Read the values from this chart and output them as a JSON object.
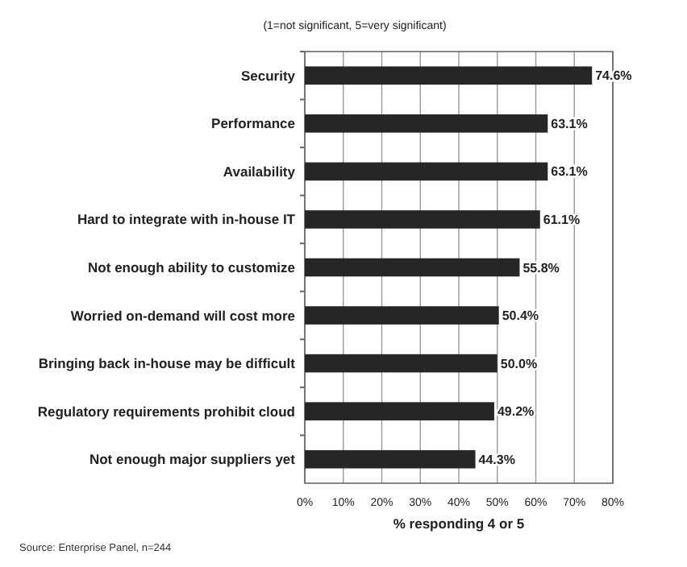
{
  "chart_data": {
    "type": "bar",
    "orientation": "horizontal",
    "subtitle": "(1=not significant, 5=very significant)",
    "xlabel": "% responding 4 or 5",
    "categories": [
      "Security",
      "Performance",
      "Availability",
      "Hard to integrate with in-house IT",
      "Not enough ability to customize",
      "Worried on-demand will cost more",
      "Bringing back in-house may be difficult",
      "Regulatory requirements prohibit cloud",
      "Not enough major suppliers yet"
    ],
    "values": [
      74.6,
      63.1,
      63.1,
      61.1,
      55.8,
      50.4,
      50.0,
      49.2,
      44.3
    ],
    "value_labels": [
      "74.6%",
      "63.1%",
      "63.1%",
      "61.1%",
      "55.8%",
      "50.4%",
      "50.0%",
      "49.2%",
      "44.3%"
    ],
    "color": "#262626",
    "xlim": [
      0,
      80
    ],
    "xticks": [
      {
        "value": 0,
        "label": "0%"
      },
      {
        "value": 10,
        "label": "10%"
      },
      {
        "value": 20,
        "label": "20%"
      },
      {
        "value": 30,
        "label": "30%"
      },
      {
        "value": 40,
        "label": "40%"
      },
      {
        "value": 50,
        "label": "50%"
      },
      {
        "value": 60,
        "label": "60%"
      },
      {
        "value": 70,
        "label": "70%"
      },
      {
        "value": 80,
        "label": "80%"
      }
    ],
    "grid": "x",
    "annotations": [
      "Source: Enterprise Panel,   n=244"
    ]
  }
}
